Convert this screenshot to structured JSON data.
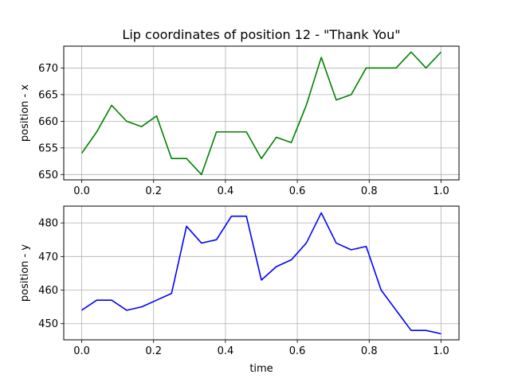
{
  "chart_data": [
    {
      "type": "line",
      "title": "Lip coordinates of position 12 - \"Thank You\"",
      "xlabel": "",
      "ylabel": "position - x",
      "xlim": [
        -0.05,
        1.05
      ],
      "ylim": [
        649,
        674.1
      ],
      "xticks": [
        0.0,
        0.2,
        0.4,
        0.6,
        0.8,
        1.0
      ],
      "xtick_labels": [
        "0.0",
        "0.2",
        "0.4",
        "0.6",
        "0.8",
        "1.0"
      ],
      "yticks": [
        650,
        655,
        660,
        665,
        670
      ],
      "ytick_labels": [
        "650",
        "655",
        "660",
        "665",
        "670"
      ],
      "grid": true,
      "series": [
        {
          "color": "#008000",
          "x": [
            0.0,
            0.0417,
            0.0833,
            0.125,
            0.1667,
            0.2083,
            0.25,
            0.2917,
            0.3333,
            0.375,
            0.4167,
            0.4583,
            0.5,
            0.5417,
            0.5833,
            0.625,
            0.6667,
            0.7083,
            0.75,
            0.7917,
            0.8333,
            0.875,
            0.9167,
            0.9583,
            1.0
          ],
          "y": [
            654,
            658,
            663,
            660,
            659,
            661,
            653,
            653,
            650,
            658,
            658,
            658,
            653,
            657,
            656,
            663,
            672,
            664,
            665,
            670,
            670,
            670,
            673,
            670,
            673
          ]
        }
      ]
    },
    {
      "type": "line",
      "title": "",
      "xlabel": "time",
      "ylabel": "position - y",
      "xlim": [
        -0.05,
        1.05
      ],
      "ylim": [
        445.2,
        485
      ],
      "xticks": [
        0.0,
        0.2,
        0.4,
        0.6,
        0.8,
        1.0
      ],
      "xtick_labels": [
        "0.0",
        "0.2",
        "0.4",
        "0.6",
        "0.8",
        "1.0"
      ],
      "yticks": [
        450,
        460,
        470,
        480
      ],
      "ytick_labels": [
        "450",
        "460",
        "470",
        "480"
      ],
      "grid": true,
      "series": [
        {
          "color": "#0000ff",
          "x": [
            0.0,
            0.0417,
            0.0833,
            0.125,
            0.1667,
            0.2083,
            0.25,
            0.2917,
            0.3333,
            0.375,
            0.4167,
            0.4583,
            0.5,
            0.5417,
            0.5833,
            0.625,
            0.6667,
            0.7083,
            0.75,
            0.7917,
            0.8333,
            0.875,
            0.9167,
            0.9583,
            1.0
          ],
          "y": [
            454,
            457,
            457,
            454,
            455,
            457,
            459,
            479,
            474,
            475,
            482,
            482,
            463,
            467,
            469,
            474,
            483,
            474,
            472,
            473,
            460,
            454,
            448,
            448,
            447
          ]
        }
      ]
    }
  ]
}
